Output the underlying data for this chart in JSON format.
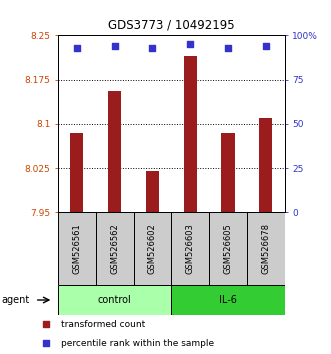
{
  "title": "GDS3773 / 10492195",
  "samples": [
    "GSM526561",
    "GSM526562",
    "GSM526602",
    "GSM526603",
    "GSM526605",
    "GSM526678"
  ],
  "transformed_counts": [
    8.085,
    8.155,
    8.02,
    8.215,
    8.085,
    8.11
  ],
  "percentile_ranks": [
    93,
    94,
    93,
    95,
    93,
    94
  ],
  "ylim_left": [
    7.95,
    8.25
  ],
  "yticks_left": [
    7.95,
    8.025,
    8.1,
    8.175,
    8.25
  ],
  "yticks_right": [
    0,
    25,
    50,
    75,
    100
  ],
  "bar_color": "#9B1C1C",
  "dot_color": "#3333CC",
  "control_color": "#AAFFAA",
  "il6_color": "#33CC33",
  "left_tick_color": "#CC4400",
  "right_tick_color": "#3333CC",
  "bar_bottom": 7.95,
  "bar_width": 0.35
}
